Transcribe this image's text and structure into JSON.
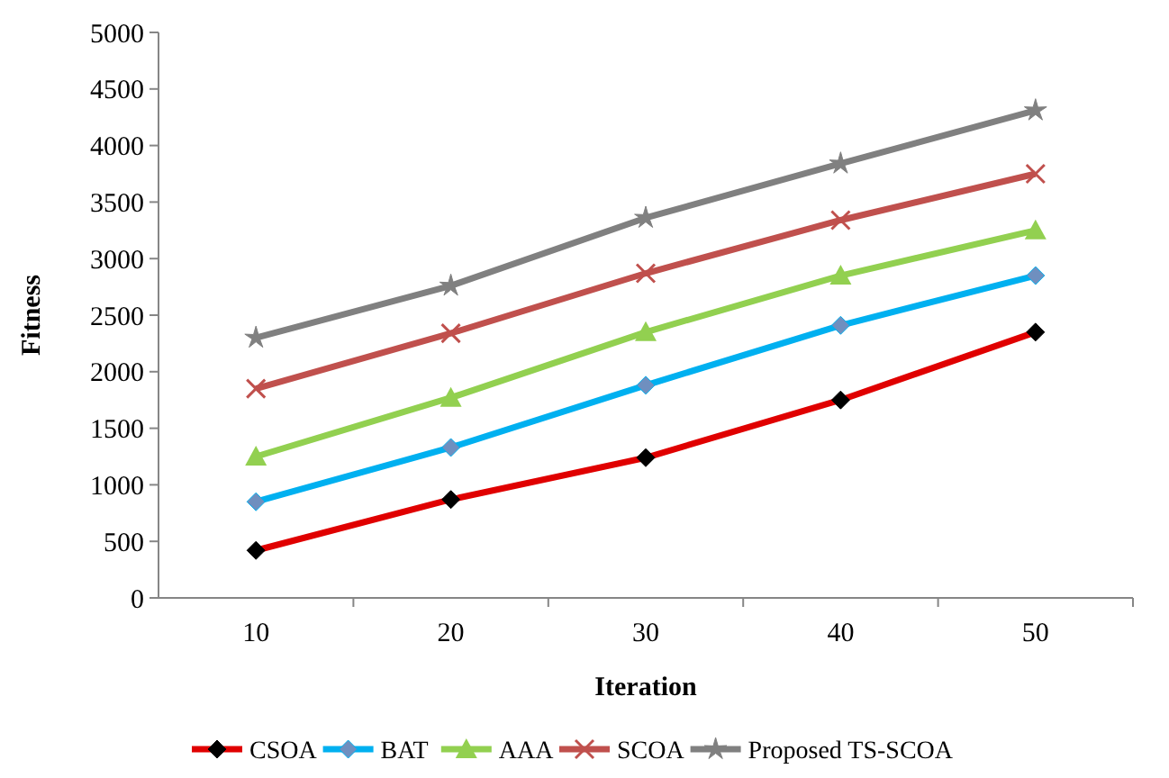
{
  "chart_data": {
    "type": "line",
    "xlabel": "Iteration",
    "ylabel": "Fitness",
    "categories": [
      "10",
      "20",
      "30",
      "40",
      "50"
    ],
    "ylim": [
      0,
      5000
    ],
    "yticks": [
      0,
      500,
      1000,
      1500,
      2000,
      2500,
      3000,
      3500,
      4000,
      4500,
      5000
    ],
    "grid": false,
    "legend": "bottom",
    "series": [
      {
        "name": "CSOA",
        "color": "#e00000",
        "marker": "diamond",
        "values": [
          420,
          870,
          1240,
          1750,
          2350
        ]
      },
      {
        "name": "BAT",
        "color": "#00b0f0",
        "marker": "diamond",
        "values": [
          850,
          1330,
          1880,
          2410,
          2850
        ]
      },
      {
        "name": "AAA",
        "color": "#92d050",
        "marker": "triangle",
        "values": [
          1250,
          1770,
          2350,
          2850,
          3250
        ]
      },
      {
        "name": "SCOA",
        "color": "#c0504d",
        "marker": "cross",
        "values": [
          1850,
          2340,
          2870,
          3340,
          3750
        ]
      },
      {
        "name": "Proposed TS-SCOA",
        "color": "#808080",
        "marker": "star",
        "values": [
          2300,
          2760,
          3360,
          3840,
          4310
        ]
      }
    ]
  }
}
